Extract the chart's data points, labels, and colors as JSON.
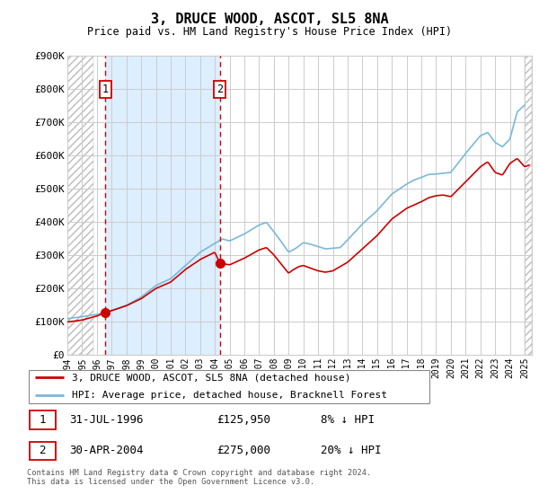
{
  "title": "3, DRUCE WOOD, ASCOT, SL5 8NA",
  "subtitle": "Price paid vs. HM Land Registry's House Price Index (HPI)",
  "hpi_color": "#7ab8d9",
  "price_color": "#cc0000",
  "vline_color": "#cc0000",
  "ylabel_ticks": [
    "£0",
    "£100K",
    "£200K",
    "£300K",
    "£400K",
    "£500K",
    "£600K",
    "£700K",
    "£800K",
    "£900K"
  ],
  "ytick_values": [
    0,
    100000,
    200000,
    300000,
    400000,
    500000,
    600000,
    700000,
    800000,
    900000
  ],
  "ylim": [
    0,
    900000
  ],
  "xlim_start": 1994.0,
  "xlim_end": 2025.5,
  "sale1_x": 1996.58,
  "sale1_y": 125950,
  "sale2_x": 2004.33,
  "sale2_y": 275000,
  "legend_line1": "3, DRUCE WOOD, ASCOT, SL5 8NA (detached house)",
  "legend_line2": "HPI: Average price, detached house, Bracknell Forest",
  "footer": "Contains HM Land Registry data © Crown copyright and database right 2024.\nThis data is licensed under the Open Government Licence v3.0.",
  "grid_color": "#cccccc",
  "hatch_left_end": 1995.75,
  "hatch_right_start": 2025.0,
  "blue_shade_start": 1996.58,
  "blue_shade_end": 2004.33,
  "blue_shade_color": "#ddeeff"
}
